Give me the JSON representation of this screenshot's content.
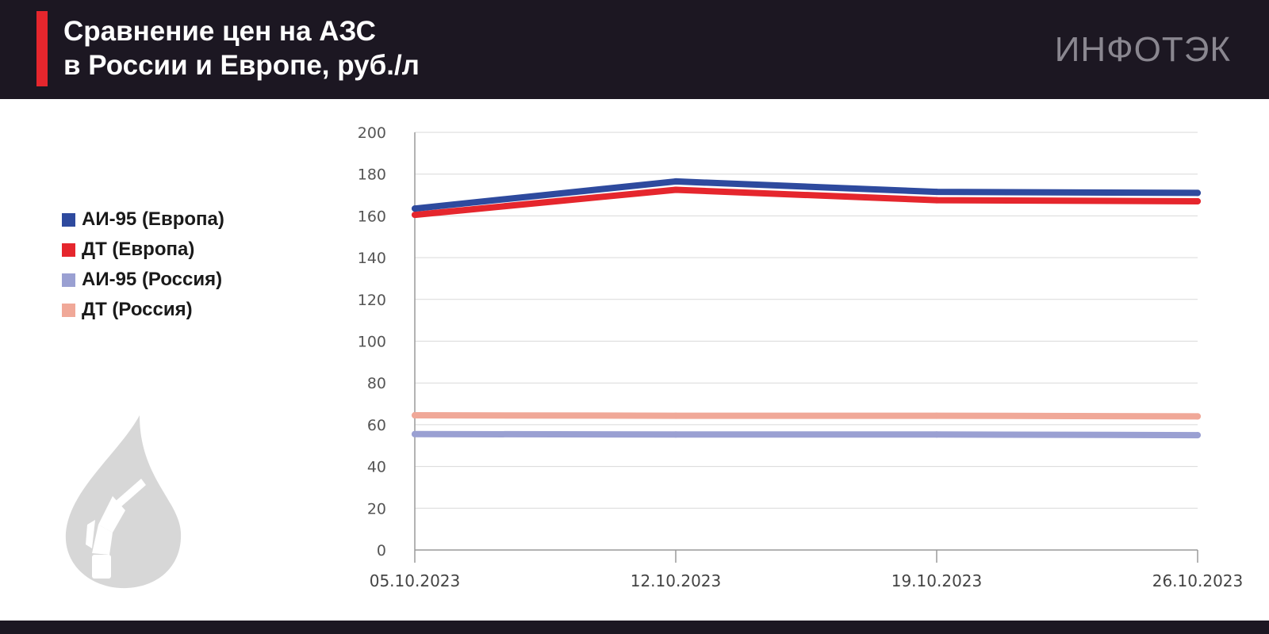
{
  "header": {
    "title_line1": "Сравнение цен на АЗС",
    "title_line2": "в России и Европе, руб./л",
    "brand": "ИНФОТЭК"
  },
  "colors": {
    "header_bg": "#1c1722",
    "accent": "#e5262d",
    "ai95_europe": "#2e4a9e",
    "dt_europe": "#e5262d",
    "ai95_russia": "#9aa0d2",
    "dt_russia": "#f0a898"
  },
  "legend": [
    {
      "label": "АИ-95 (Европа)",
      "color": "#2e4a9e"
    },
    {
      "label": "ДТ (Европа)",
      "color": "#e5262d"
    },
    {
      "label": "АИ-95 (Россия)",
      "color": "#9aa0d2"
    },
    {
      "label": "ДТ (Россия)",
      "color": "#f0a898"
    }
  ],
  "decor": {
    "icon": "fuel-drop-nozzle-icon"
  },
  "chart_data": {
    "type": "line",
    "categories": [
      "05.10.2023",
      "12.10.2023",
      "19.10.2023",
      "26.10.2023"
    ],
    "ylim": [
      0,
      200
    ],
    "yticks": [
      0,
      20,
      40,
      60,
      80,
      100,
      120,
      140,
      160,
      180,
      200
    ],
    "grid": true,
    "legend_position": "left",
    "series": [
      {
        "name": "АИ-95 (Европа)",
        "color": "#2e4a9e",
        "values": [
          163.5,
          176.5,
          171.5,
          171
        ]
      },
      {
        "name": "ДТ (Европа)",
        "color": "#e5262d",
        "values": [
          160.5,
          172.5,
          167.5,
          167
        ]
      },
      {
        "name": "АИ-95 (Россия)",
        "color": "#9aa0d2",
        "values": [
          55.5,
          55.3,
          55.3,
          55
        ]
      },
      {
        "name": "ДТ (Россия)",
        "color": "#f0a898",
        "values": [
          64.5,
          64.3,
          64.3,
          64
        ]
      }
    ]
  }
}
